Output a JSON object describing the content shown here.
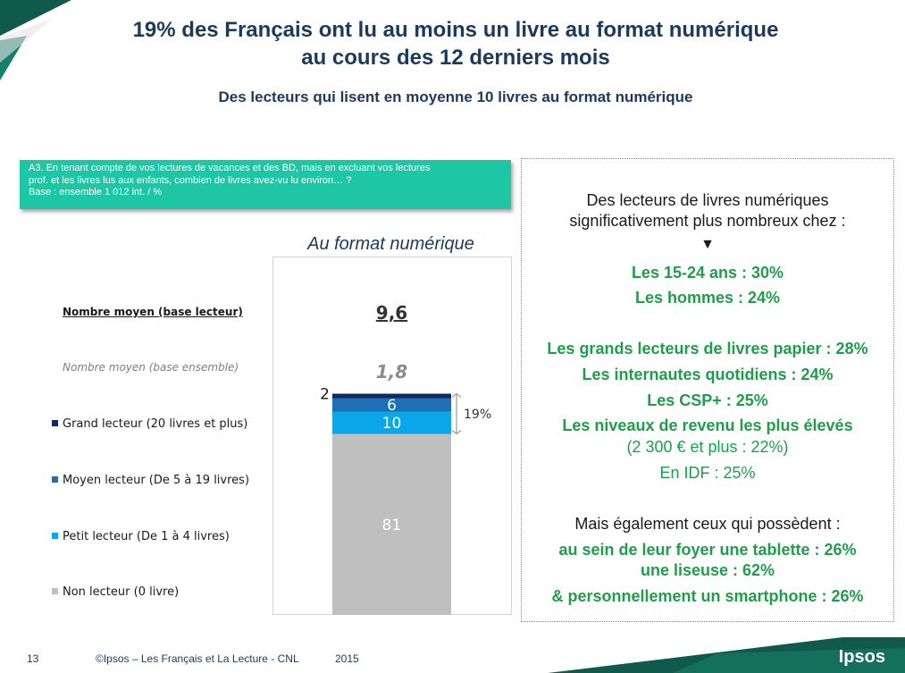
{
  "header": {
    "title_line1": "19% des Français ont lu au moins un livre au format numérique",
    "title_line2": "au cours des 12 derniers mois",
    "subtitle": "Des lecteurs qui lisent en moyenne 10 livres au format numérique"
  },
  "question": {
    "line1": "A3. En tenant compte de vos lectures de vacances et des BD, mais en excluant vos lectures",
    "line2": "prof. et les livres lus aux enfants, combien de livres avez-vu lu environ…  ?",
    "line3": "Base : ensemble 1 012 int. / %"
  },
  "chart_data": {
    "type": "bar",
    "stacked": true,
    "title": "Au format numérique",
    "unit": "%",
    "mean_reader_label": "Nombre moyen (base lecteur)",
    "mean_reader_value": "9,6",
    "mean_all_label": "Nombre moyen (base ensemble)",
    "mean_all_value": "1,8",
    "bracket_label": "19%",
    "series": [
      {
        "name": "Grand lecteur (20 livres et plus)",
        "value": 2,
        "color": "#0f2a5c"
      },
      {
        "name": "Moyen lecteur (De 5 à 19 livres)",
        "value": 6,
        "color": "#1f6fb5"
      },
      {
        "name": "Petit lecteur (De 1 à 4 livres)",
        "value": 10,
        "color": "#0aa8e8"
      },
      {
        "name": "Non lecteur (0 livre)",
        "value": 81,
        "color": "#bfbfbf"
      }
    ]
  },
  "right_panel": {
    "heading_line1": "Des lecteurs de livres numériques",
    "heading_line2": "significativement plus nombreux chez :",
    "arrow": "▼",
    "item1": "Les 15-24 ans : 30%",
    "item2": "Les hommes : 24%",
    "item3": "Les grands lecteurs de livres papier : 28%",
    "item4": "Les internautes quotidiens : 24%",
    "item5": "Les CSP+ : 25%",
    "item6": "Les niveaux de revenu les plus élevés",
    "item6b": "(2 300 € et plus : 22%)",
    "item7": "En IDF : 25%",
    "heading2": "Mais également ceux qui possèdent :",
    "item8": "au sein de leur foyer une tablette : 26%",
    "item9": "une liseuse : 62%",
    "item10": "& personnellement un smartphone : 26%"
  },
  "footer": {
    "page_number": "13",
    "source": "©Ipsos – Les Français et La Lecture - CNL",
    "year": "2015",
    "logo": "Ipsos"
  },
  "colors": {
    "title": "#1b3a5c",
    "accent_teal": "#1dc6a5",
    "green_text": "#1f9e4a",
    "dark_green": "#0f5a4a"
  }
}
